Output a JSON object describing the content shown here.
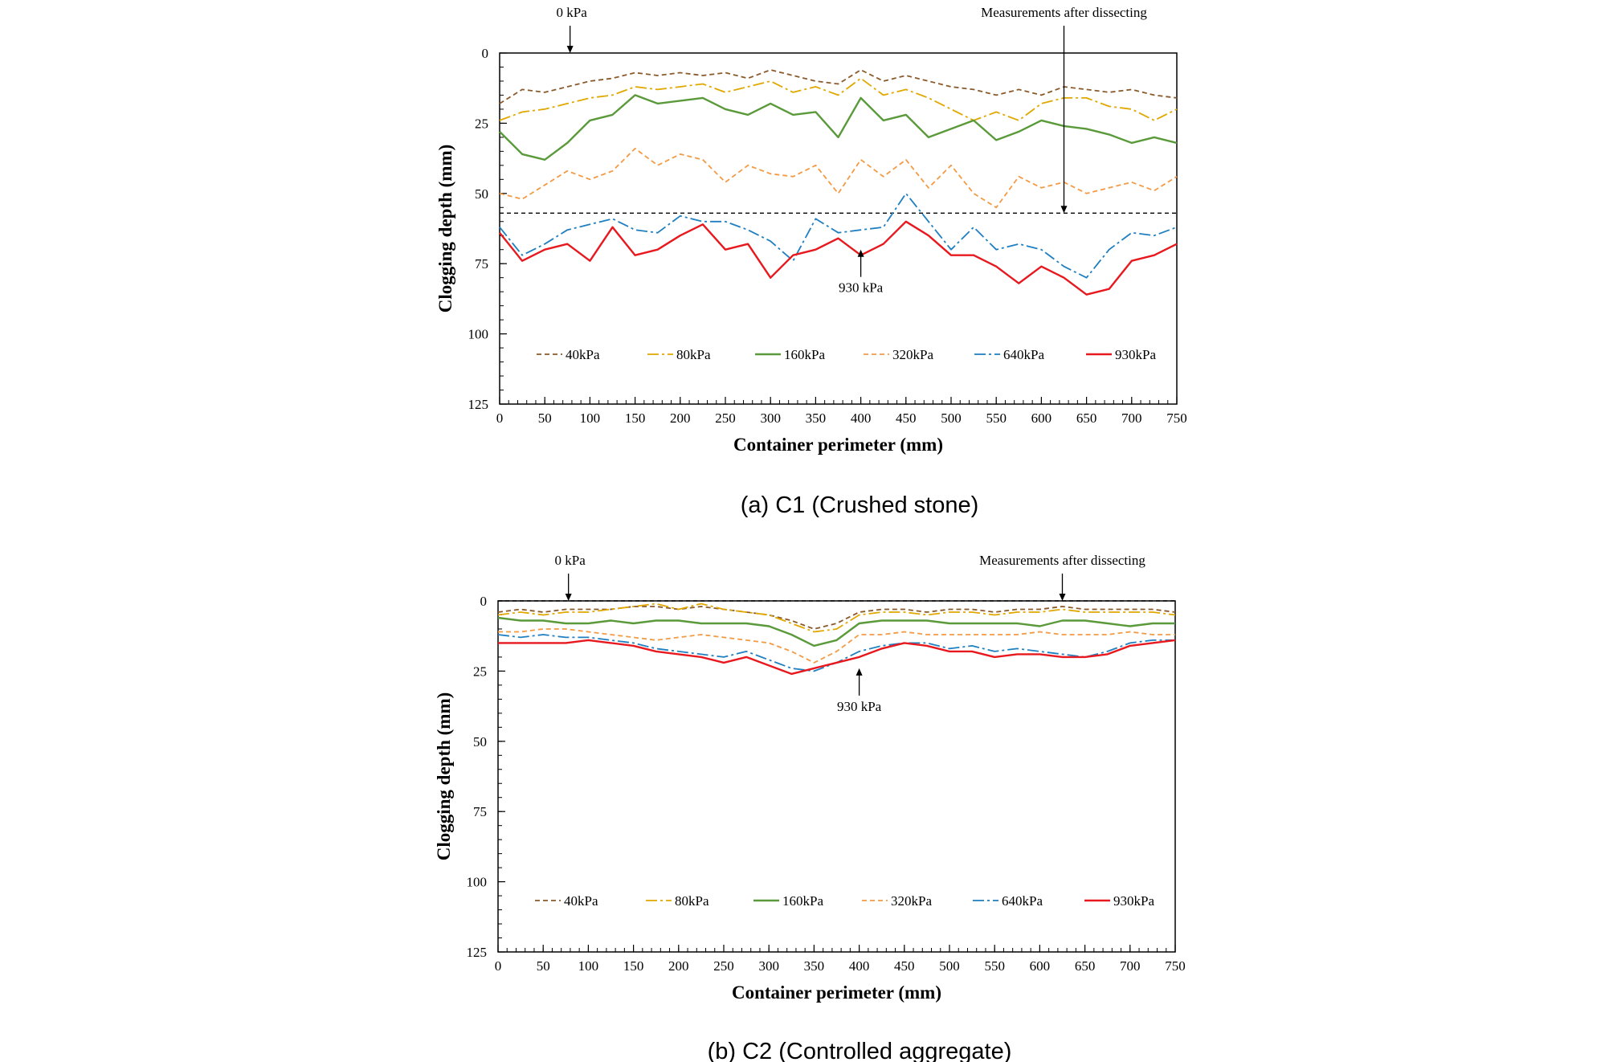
{
  "chart_data": [
    {
      "type": "line",
      "caption": "(a) C1 (Crushed stone)",
      "xlabel": "Container perimeter (mm)",
      "ylabel": "Clogging depth (mm)",
      "xlim": [
        0,
        750
      ],
      "ylim": [
        0,
        125
      ],
      "y_inverted": true,
      "x_ticks": [
        0,
        50,
        100,
        150,
        200,
        250,
        300,
        350,
        400,
        450,
        500,
        550,
        600,
        650,
        700,
        750
      ],
      "y_ticks": [
        0,
        25,
        50,
        75,
        100,
        125
      ],
      "grid": false,
      "legend_position": "bottom-inside",
      "annotations": [
        {
          "text": "0 kPa",
          "x": 78,
          "y": 0
        },
        {
          "text": "Measurements after dissecting",
          "x": 625,
          "y": 57
        },
        {
          "text": "930 kPa",
          "x": 400,
          "y": 70
        }
      ],
      "reference_line_y": 57,
      "x": [
        0,
        25,
        50,
        75,
        100,
        125,
        150,
        175,
        200,
        225,
        250,
        275,
        300,
        325,
        350,
        375,
        400,
        425,
        450,
        475,
        500,
        525,
        550,
        575,
        600,
        625,
        650,
        675,
        700,
        725,
        750
      ],
      "series": [
        {
          "name": "40kPa",
          "color": "#8B5A2B",
          "dash": "6,4",
          "values": [
            18,
            13,
            14,
            12,
            10,
            9,
            7,
            8,
            7,
            8,
            7,
            9,
            6,
            8,
            10,
            11,
            6,
            10,
            8,
            10,
            12,
            13,
            15,
            13,
            15,
            12,
            13,
            14,
            13,
            15,
            16
          ]
        },
        {
          "name": "80kPa",
          "color": "#E0A800",
          "dash": "14,4,3,4",
          "values": [
            24,
            21,
            20,
            18,
            16,
            15,
            12,
            13,
            12,
            11,
            14,
            12,
            10,
            14,
            12,
            15,
            9,
            15,
            13,
            16,
            20,
            24,
            21,
            24,
            18,
            16,
            16,
            19,
            20,
            24,
            20
          ]
        },
        {
          "name": "160kPa",
          "color": "#5A9A3A",
          "dash": "",
          "values": [
            28,
            36,
            38,
            32,
            24,
            22,
            15,
            18,
            17,
            16,
            20,
            22,
            18,
            22,
            21,
            30,
            16,
            24,
            22,
            30,
            27,
            24,
            31,
            28,
            24,
            26,
            27,
            29,
            32,
            30,
            32
          ]
        },
        {
          "name": "320kPa",
          "color": "#F39A45",
          "dash": "6,4",
          "values": [
            50,
            52,
            47,
            42,
            45,
            42,
            34,
            40,
            36,
            38,
            46,
            40,
            43,
            44,
            40,
            50,
            38,
            44,
            38,
            48,
            40,
            50,
            55,
            44,
            48,
            46,
            50,
            48,
            46,
            49,
            44
          ]
        },
        {
          "name": "640kPa",
          "color": "#1F7FC0",
          "dash": "14,4,3,4",
          "values": [
            62,
            72,
            68,
            63,
            61,
            59,
            63,
            64,
            58,
            60,
            60,
            63,
            67,
            74,
            59,
            64,
            63,
            62,
            50,
            60,
            70,
            62,
            70,
            68,
            70,
            76,
            80,
            70,
            64,
            65,
            62
          ]
        },
        {
          "name": "930kPa",
          "color": "#E8191E",
          "dash": "",
          "values": [
            64,
            74,
            70,
            68,
            74,
            62,
            72,
            70,
            65,
            61,
            70,
            68,
            80,
            72,
            70,
            66,
            72,
            68,
            60,
            65,
            72,
            72,
            76,
            82,
            76,
            80,
            86,
            84,
            74,
            72,
            68
          ]
        }
      ]
    },
    {
      "type": "line",
      "caption": "(b) C2 (Controlled aggregate)",
      "xlabel": "Container perimeter (mm)",
      "ylabel": "Clogging depth (mm)",
      "xlim": [
        0,
        750
      ],
      "ylim": [
        0,
        125
      ],
      "y_inverted": true,
      "x_ticks": [
        0,
        50,
        100,
        150,
        200,
        250,
        300,
        350,
        400,
        450,
        500,
        550,
        600,
        650,
        700,
        750
      ],
      "y_ticks": [
        0,
        25,
        50,
        75,
        100,
        125
      ],
      "grid": false,
      "legend_position": "bottom-inside",
      "annotations": [
        {
          "text": "0 kPa",
          "x": 78,
          "y": 0
        },
        {
          "text": "Measurements after dissecting",
          "x": 625,
          "y": 0
        },
        {
          "text": "930 kPa",
          "x": 400,
          "y": 24
        }
      ],
      "reference_line_y": 0,
      "x": [
        0,
        25,
        50,
        75,
        100,
        125,
        150,
        175,
        200,
        225,
        250,
        275,
        300,
        325,
        350,
        375,
        400,
        425,
        450,
        475,
        500,
        525,
        550,
        575,
        600,
        625,
        650,
        675,
        700,
        725,
        750
      ],
      "series": [
        {
          "name": "40kPa",
          "color": "#8B5A2B",
          "dash": "6,4",
          "values": [
            4,
            3,
            4,
            3,
            3,
            3,
            2,
            2,
            3,
            2,
            3,
            4,
            5,
            7,
            10,
            8,
            4,
            3,
            3,
            4,
            3,
            3,
            4,
            3,
            3,
            2,
            3,
            3,
            3,
            3,
            4
          ]
        },
        {
          "name": "80kPa",
          "color": "#E0A800",
          "dash": "14,4,3,4",
          "values": [
            5,
            4,
            5,
            4,
            4,
            3,
            2,
            1,
            3,
            1,
            3,
            4,
            5,
            8,
            11,
            10,
            5,
            4,
            4,
            5,
            4,
            4,
            5,
            4,
            4,
            3,
            4,
            4,
            4,
            4,
            5
          ]
        },
        {
          "name": "160kPa",
          "color": "#5A9A3A",
          "dash": "",
          "values": [
            6,
            7,
            7,
            8,
            8,
            7,
            8,
            7,
            7,
            8,
            8,
            8,
            9,
            12,
            16,
            14,
            8,
            7,
            7,
            7,
            8,
            8,
            8,
            8,
            9,
            7,
            7,
            8,
            9,
            8,
            8
          ]
        },
        {
          "name": "320kPa",
          "color": "#F39A45",
          "dash": "6,4",
          "values": [
            11,
            11,
            10,
            10,
            11,
            12,
            13,
            14,
            13,
            12,
            13,
            14,
            15,
            18,
            22,
            18,
            12,
            12,
            11,
            12,
            12,
            12,
            12,
            12,
            11,
            12,
            12,
            12,
            11,
            12,
            12
          ]
        },
        {
          "name": "640kPa",
          "color": "#1F7FC0",
          "dash": "14,4,3,4",
          "values": [
            12,
            13,
            12,
            13,
            13,
            14,
            15,
            17,
            18,
            19,
            20,
            18,
            21,
            24,
            25,
            22,
            18,
            16,
            15,
            15,
            17,
            16,
            18,
            17,
            18,
            19,
            20,
            18,
            15,
            14,
            14
          ]
        },
        {
          "name": "930kPa",
          "color": "#E8191E",
          "dash": "",
          "values": [
            15,
            15,
            15,
            15,
            14,
            15,
            16,
            18,
            19,
            20,
            22,
            20,
            23,
            26,
            24,
            22,
            20,
            17,
            15,
            16,
            18,
            18,
            20,
            19,
            19,
            20,
            20,
            19,
            16,
            15,
            14
          ]
        }
      ]
    }
  ]
}
